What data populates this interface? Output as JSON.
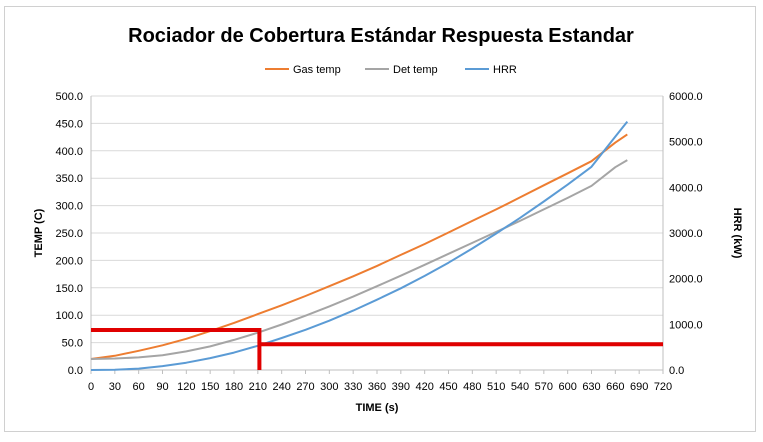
{
  "chart_data": {
    "type": "line",
    "title": "Rociador de Cobertura Estándar Respuesta Estandar",
    "xlabel": "TIME (s)",
    "ylabel": "TEMP (C)",
    "y2label": "HRR (kW)",
    "xlim": [
      0,
      720
    ],
    "ylim": [
      0,
      500
    ],
    "y2lim": [
      0,
      6000
    ],
    "x_ticks": [
      0,
      30,
      60,
      90,
      120,
      150,
      180,
      210,
      240,
      270,
      300,
      330,
      360,
      390,
      420,
      450,
      480,
      510,
      540,
      570,
      600,
      630,
      660,
      690,
      720
    ],
    "y_ticks": [
      "0.0",
      "50.0",
      "100.0",
      "150.0",
      "200.0",
      "250.0",
      "300.0",
      "350.0",
      "400.0",
      "450.0",
      "500.0"
    ],
    "y2_ticks": [
      "0.0",
      "1000.0",
      "2000.0",
      "3000.0",
      "4000.0",
      "5000.0",
      "6000.0"
    ],
    "grid": "horizontal",
    "legend_position": "top",
    "series": [
      {
        "name": "Gas temp",
        "axis": "left",
        "color": "#ED7D31",
        "x": [
          0,
          30,
          60,
          90,
          120,
          150,
          180,
          210,
          240,
          270,
          300,
          330,
          360,
          390,
          420,
          450,
          480,
          510,
          540,
          570,
          600,
          630,
          660,
          675
        ],
        "y": [
          20,
          26,
          35,
          45,
          57,
          71,
          86,
          102,
          118,
          135,
          153,
          171,
          190,
          210,
          230,
          251,
          272,
          293,
          315,
          337,
          359,
          381,
          415,
          430
        ]
      },
      {
        "name": "Det temp",
        "axis": "left",
        "color": "#A5A5A5",
        "x": [
          0,
          30,
          60,
          90,
          120,
          150,
          180,
          210,
          240,
          270,
          300,
          330,
          360,
          390,
          420,
          450,
          480,
          510,
          540,
          570,
          600,
          630,
          660,
          675
        ],
        "y": [
          20,
          21,
          23,
          27,
          34,
          43,
          55,
          68,
          83,
          99,
          116,
          134,
          153,
          172,
          192,
          212,
          232,
          252,
          272,
          293,
          314,
          336,
          370,
          383
        ]
      },
      {
        "name": "HRR",
        "axis": "right",
        "color": "#5B9BD5",
        "x": [
          0,
          30,
          60,
          90,
          120,
          150,
          180,
          210,
          240,
          270,
          300,
          330,
          360,
          390,
          420,
          450,
          480,
          510,
          540,
          570,
          600,
          630,
          660,
          675
        ],
        "y": [
          0,
          5,
          30,
          85,
          160,
          260,
          380,
          530,
          700,
          880,
          1080,
          1300,
          1540,
          1790,
          2060,
          2350,
          2660,
          2990,
          3330,
          3690,
          4060,
          4450,
          5110,
          5440
        ]
      }
    ],
    "annotations": [
      {
        "type": "step-line",
        "color": "#E00000",
        "axis": "left",
        "points": [
          [
            0,
            73
          ],
          [
            212,
            73
          ],
          [
            212,
            0
          ],
          [
            212,
            47
          ],
          [
            720,
            47
          ]
        ]
      }
    ]
  }
}
